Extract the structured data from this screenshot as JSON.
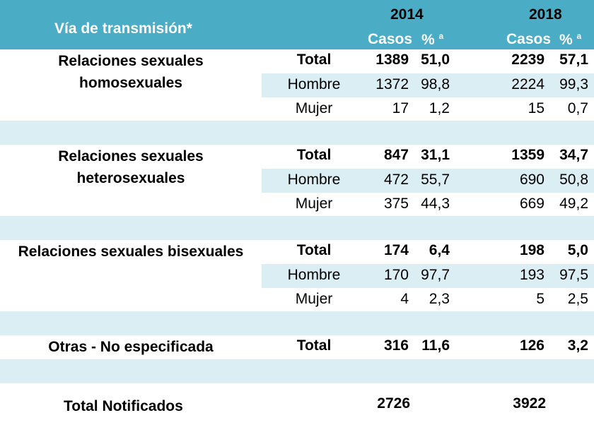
{
  "header": {
    "title": "Vía de transmisión*",
    "year1": "2014",
    "year2": "2018",
    "casos": "Casos",
    "pct": "%",
    "pct_sup": "a"
  },
  "groups": [
    {
      "category": "Relaciones sexuales homosexuales",
      "category_lines": [
        "Relaciones sexuales",
        "homosexuales"
      ],
      "rows": [
        {
          "label": "Total",
          "c2014": "1389",
          "p2014": "51,0",
          "c2018": "2239",
          "p2018": "57,1"
        },
        {
          "label": "Hombre",
          "c2014": "1372",
          "p2014": "98,8",
          "c2018": "2224",
          "p2018": "99,3"
        },
        {
          "label": "Mujer",
          "c2014": "17",
          "p2014": "1,2",
          "c2018": "15",
          "p2018": "0,7"
        }
      ]
    },
    {
      "category": "Relaciones sexuales heterosexuales",
      "category_lines": [
        "Relaciones sexuales",
        "heterosexuales"
      ],
      "rows": [
        {
          "label": "Total",
          "c2014": "847",
          "p2014": "31,1",
          "c2018": "1359",
          "p2018": "34,7"
        },
        {
          "label": "Hombre",
          "c2014": "472",
          "p2014": "55,7",
          "c2018": "690",
          "p2018": "50,8"
        },
        {
          "label": "Mujer",
          "c2014": "375",
          "p2014": "44,3",
          "c2018": "669",
          "p2018": "49,2"
        }
      ]
    },
    {
      "category": "Relaciones sexuales bisexuales",
      "category_lines": [
        "Relaciones sexuales bisexuales"
      ],
      "rows": [
        {
          "label": "Total",
          "c2014": "174",
          "p2014": "6,4",
          "c2018": "198",
          "p2018": "5,0"
        },
        {
          "label": "Hombre",
          "c2014": "170",
          "p2014": "97,7",
          "c2018": "193",
          "p2018": "97,5"
        },
        {
          "label": "Mujer",
          "c2014": "4",
          "p2014": "2,3",
          "c2018": "5",
          "p2018": "2,5"
        }
      ]
    },
    {
      "category": "Otras - No especificada",
      "category_lines": [
        "Otras - No especificada"
      ],
      "rows": [
        {
          "label": "Total",
          "c2014": "316",
          "p2014": "11,6",
          "c2018": "126",
          "p2018": "3,2"
        }
      ]
    }
  ],
  "totals": {
    "label": "Total Notificados",
    "c2014": "2726",
    "c2018": "3922"
  },
  "colors": {
    "header": "#4bacc6",
    "band": "#dbeef4"
  }
}
